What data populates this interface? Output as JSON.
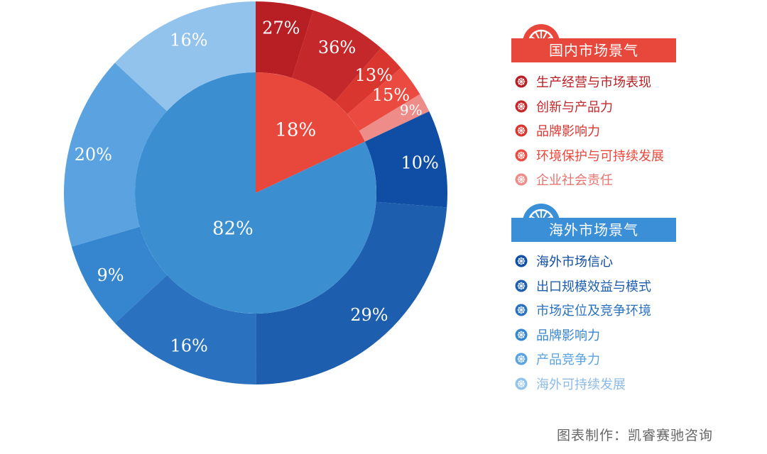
{
  "colors": {
    "domestic_accent": "#e8473b",
    "overseas_accent": "#3b8fd6"
  },
  "chart_data": {
    "type": "pie",
    "title": "",
    "inner_ring": [
      {
        "label": "18%",
        "value": 18,
        "color": "#e8473b"
      },
      {
        "label": "82%",
        "value": 82,
        "color": "#3b8fd0"
      }
    ],
    "outer_ring": {
      "start_angle_deg": 0,
      "values": [
        {
          "label": "27%",
          "value": 4.86,
          "color": "#b81f24"
        },
        {
          "label": "36%",
          "value": 6.48,
          "color": "#c4282a"
        },
        {
          "label": "13%",
          "value": 2.34,
          "color": "#d9362f"
        },
        {
          "label": "15%",
          "value": 2.7,
          "color": "#ea4a3f"
        },
        {
          "label": "9%",
          "value": 1.62,
          "color": "#ee8c89"
        },
        {
          "label": "10%",
          "value": 8.2,
          "color": "#0f4ea4"
        },
        {
          "label": "29%",
          "value": 23.78,
          "color": "#1d5eaf"
        },
        {
          "label": "16%",
          "value": 13.12,
          "color": "#2a72c0"
        },
        {
          "label": "9%",
          "value": 7.38,
          "color": "#3686cf"
        },
        {
          "label": "20%",
          "value": 16.4,
          "color": "#5aa3e0"
        },
        {
          "label": "16%",
          "value": 13.12,
          "color": "#92c3ec"
        }
      ]
    }
  },
  "legend": {
    "domestic": {
      "title": "国内市场景气",
      "items": [
        {
          "label": "生产经营与市场表现",
          "color": "#b81f24",
          "text_color": "#b81f24"
        },
        {
          "label": "创新与产品力",
          "color": "#c4282a",
          "text_color": "#c4282a"
        },
        {
          "label": "品牌影响力",
          "color": "#d9362f",
          "text_color": "#d9362f"
        },
        {
          "label": "环境保护与可持续发展",
          "color": "#ea4a3f",
          "text_color": "#e8473b"
        },
        {
          "label": "企业社会责任",
          "color": "#ee8c89",
          "text_color": "#e8736d"
        }
      ]
    },
    "overseas": {
      "title": "海外市场景气",
      "items": [
        {
          "label": "海外市场信心",
          "color": "#0f4ea4",
          "text_color": "#0f4ea4"
        },
        {
          "label": "出口规模效益与模式",
          "color": "#1d5eaf",
          "text_color": "#1d5eaf"
        },
        {
          "label": "市场定位及竞争环境",
          "color": "#2a72c0",
          "text_color": "#2a72c0"
        },
        {
          "label": "品牌影响力",
          "color": "#3686cf",
          "text_color": "#3686cf"
        },
        {
          "label": "产品竞争力",
          "color": "#5aa3e0",
          "text_color": "#5aa3e0"
        },
        {
          "label": "海外可持续发展",
          "color": "#92c3ec",
          "text_color": "#8dbbe6"
        }
      ]
    }
  },
  "credit": "图表制作：凯睿赛驰咨询"
}
